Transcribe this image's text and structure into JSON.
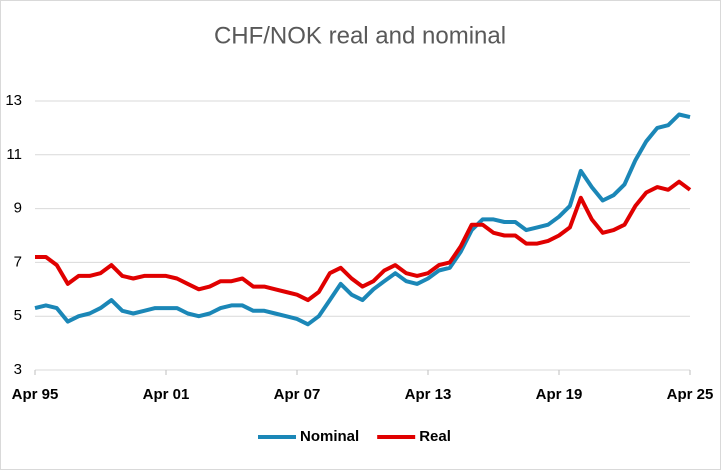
{
  "chart_data": {
    "type": "line",
    "title": "CHF/NOK real and nominal",
    "x": [
      "1995-04",
      "1995-10",
      "1996-04",
      "1996-10",
      "1997-04",
      "1997-10",
      "1998-04",
      "1998-10",
      "1999-04",
      "1999-10",
      "2000-04",
      "2000-10",
      "2001-04",
      "2001-10",
      "2002-04",
      "2002-10",
      "2003-04",
      "2003-10",
      "2004-04",
      "2004-10",
      "2005-04",
      "2005-10",
      "2006-04",
      "2006-10",
      "2007-04",
      "2007-10",
      "2008-04",
      "2008-10",
      "2009-04",
      "2009-10",
      "2010-04",
      "2010-10",
      "2011-04",
      "2011-10",
      "2012-04",
      "2012-10",
      "2013-04",
      "2013-10",
      "2014-04",
      "2014-10",
      "2015-04",
      "2015-10",
      "2016-04",
      "2016-10",
      "2017-04",
      "2017-10",
      "2018-04",
      "2018-10",
      "2019-04",
      "2019-10",
      "2020-04",
      "2020-10",
      "2021-04",
      "2021-10",
      "2022-04",
      "2022-10",
      "2023-04",
      "2023-10",
      "2024-04",
      "2024-10",
      "2025-04"
    ],
    "series": [
      {
        "name": "Nominal",
        "color": "#1b87b7",
        "values": [
          5.3,
          5.4,
          5.3,
          4.8,
          5.0,
          5.1,
          5.3,
          5.6,
          5.2,
          5.1,
          5.2,
          5.3,
          5.3,
          5.3,
          5.1,
          5.0,
          5.1,
          5.3,
          5.4,
          5.4,
          5.2,
          5.2,
          5.1,
          5.0,
          4.9,
          4.7,
          5.0,
          5.6,
          6.2,
          5.8,
          5.6,
          6.0,
          6.3,
          6.6,
          6.3,
          6.2,
          6.4,
          6.7,
          6.8,
          7.4,
          8.2,
          8.6,
          8.6,
          8.5,
          8.5,
          8.2,
          8.3,
          8.4,
          8.7,
          9.1,
          10.4,
          9.8,
          9.3,
          9.5,
          9.9,
          10.8,
          11.5,
          12.0,
          12.1,
          12.5,
          12.4
        ]
      },
      {
        "name": "Real",
        "color": "#e00000",
        "values": [
          7.2,
          7.2,
          6.9,
          6.2,
          6.5,
          6.5,
          6.6,
          6.9,
          6.5,
          6.4,
          6.5,
          6.5,
          6.5,
          6.4,
          6.2,
          6.0,
          6.1,
          6.3,
          6.3,
          6.4,
          6.1,
          6.1,
          6.0,
          5.9,
          5.8,
          5.6,
          5.9,
          6.6,
          6.8,
          6.4,
          6.1,
          6.3,
          6.7,
          6.9,
          6.6,
          6.5,
          6.6,
          6.9,
          7.0,
          7.6,
          8.4,
          8.4,
          8.1,
          8.0,
          8.0,
          7.7,
          7.7,
          7.8,
          8.0,
          8.3,
          9.4,
          8.6,
          8.1,
          8.2,
          8.4,
          9.1,
          9.6,
          9.8,
          9.7,
          10.0,
          9.7
        ]
      }
    ],
    "xlim": [
      "1995-04",
      "2025-04"
    ],
    "xticks": [
      {
        "value": "1995-04",
        "label": "Apr 95"
      },
      {
        "value": "2001-04",
        "label": "Apr 01"
      },
      {
        "value": "2007-04",
        "label": "Apr 07"
      },
      {
        "value": "2013-04",
        "label": "Apr 13"
      },
      {
        "value": "2019-04",
        "label": "Apr 19"
      },
      {
        "value": "2025-04",
        "label": "Apr 25"
      }
    ],
    "ylim": [
      3,
      13
    ],
    "yticks": [
      3,
      5,
      7,
      9,
      11,
      13
    ],
    "grid": true,
    "legend": "bottom"
  }
}
